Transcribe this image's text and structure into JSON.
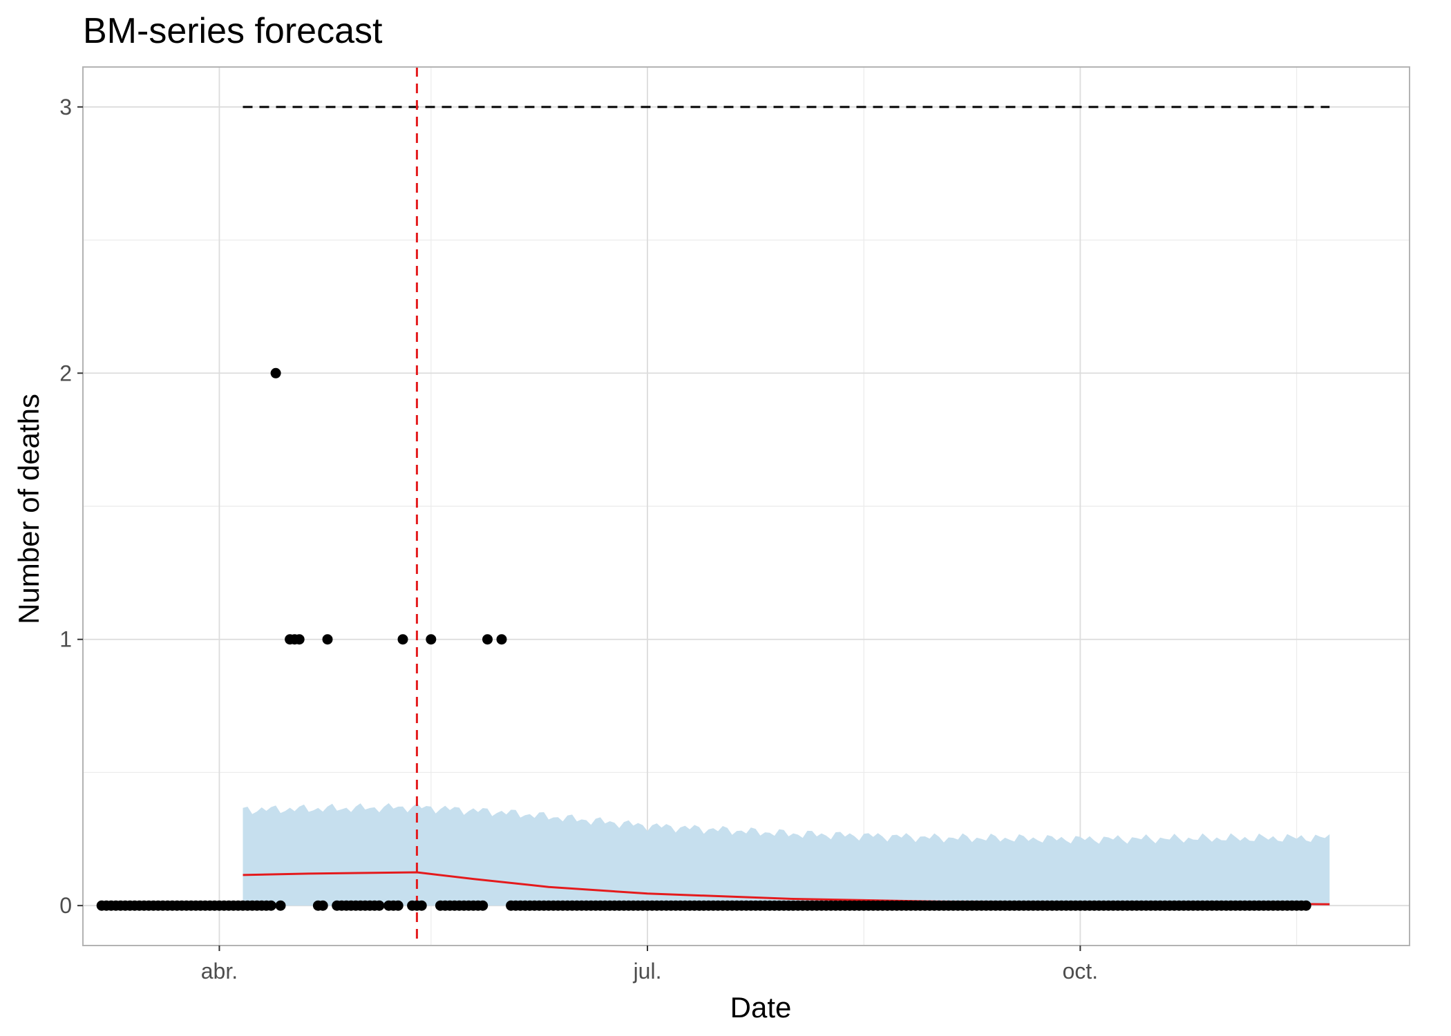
{
  "chart_data": {
    "type": "line",
    "title": "BM-series forecast",
    "xlabel": "Date",
    "ylabel": "Number of deaths",
    "x_axis": {
      "type": "date",
      "range": [
        "2020-03-03",
        "2020-12-10"
      ],
      "ticks": [
        {
          "date": "2020-04-01",
          "label": "abr."
        },
        {
          "date": "2020-07-01",
          "label": "jul."
        },
        {
          "date": "2020-10-01",
          "label": "oct."
        }
      ],
      "minor_gridlines": [
        "2020-05-16",
        "2020-08-16",
        "2020-11-16"
      ]
    },
    "y_axis": {
      "range": [
        -0.15,
        3.15
      ],
      "ticks": [
        0,
        1,
        2,
        3
      ],
      "minor_gridlines": [
        0.5,
        1.5,
        2.5
      ]
    },
    "grid": true,
    "legend": "none",
    "reference_lines": {
      "horizontal_dashed": {
        "y": 3,
        "x_start": "2020-04-06",
        "x_end": "2020-11-23",
        "color": "#000000"
      },
      "vertical_dashed": {
        "x": "2020-05-13",
        "color": "#e41a1c"
      }
    },
    "observed": {
      "x_start": "2020-03-07",
      "x_end": "2020-11-18",
      "default_value": 0,
      "nonzero": [
        {
          "x": "2020-04-13",
          "y": 2
        },
        {
          "x": "2020-04-16",
          "y": 1
        },
        {
          "x": "2020-04-17",
          "y": 1
        },
        {
          "x": "2020-04-18",
          "y": 1
        },
        {
          "x": "2020-04-24",
          "y": 1
        },
        {
          "x": "2020-05-10",
          "y": 1
        },
        {
          "x": "2020-05-16",
          "y": 1
        },
        {
          "x": "2020-05-28",
          "y": 1
        },
        {
          "x": "2020-05-31",
          "y": 1
        }
      ],
      "gaps": [
        "2020-04-15",
        "2020-04-19",
        "2020-04-20",
        "2020-04-21",
        "2020-04-25",
        "2020-05-06",
        "2020-05-11",
        "2020-05-15",
        "2020-05-17",
        "2020-05-29",
        "2020-05-30",
        "2020-06-01"
      ],
      "color": "#000000"
    },
    "forecast": {
      "color": "#e41a1c",
      "points": [
        {
          "x": "2020-04-06",
          "y": 0.115
        },
        {
          "x": "2020-04-20",
          "y": 0.12
        },
        {
          "x": "2020-05-13",
          "y": 0.125
        },
        {
          "x": "2020-05-25",
          "y": 0.1
        },
        {
          "x": "2020-06-10",
          "y": 0.07
        },
        {
          "x": "2020-07-01",
          "y": 0.045
        },
        {
          "x": "2020-08-01",
          "y": 0.025
        },
        {
          "x": "2020-09-01",
          "y": 0.015
        },
        {
          "x": "2020-10-01",
          "y": 0.012
        },
        {
          "x": "2020-11-01",
          "y": 0.008
        },
        {
          "x": "2020-11-23",
          "y": 0.005
        }
      ]
    },
    "interval": {
      "color": "#c6dfee",
      "lower": 0,
      "upper_trend": [
        {
          "x": "2020-04-06",
          "y": 0.36
        },
        {
          "x": "2020-05-13",
          "y": 0.37
        },
        {
          "x": "2020-06-01",
          "y": 0.35
        },
        {
          "x": "2020-07-01",
          "y": 0.3
        },
        {
          "x": "2020-08-01",
          "y": 0.27
        },
        {
          "x": "2020-09-01",
          "y": 0.255
        },
        {
          "x": "2020-10-01",
          "y": 0.25
        },
        {
          "x": "2020-11-23",
          "y": 0.255
        }
      ]
    }
  }
}
